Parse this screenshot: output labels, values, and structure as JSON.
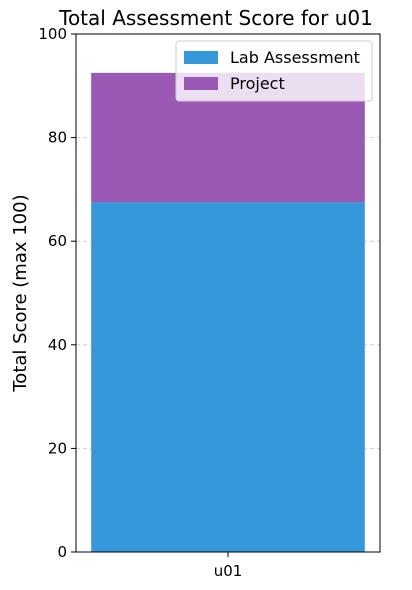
{
  "chart_data": {
    "type": "bar",
    "stacked": true,
    "title": "Total Assessment Score for u01",
    "xlabel": "",
    "ylabel": "Total Score (max 100)",
    "categories": [
      "u01"
    ],
    "ylim": [
      0,
      100
    ],
    "yticks": [
      0,
      20,
      40,
      60,
      80,
      100
    ],
    "grid": "y-dashed",
    "legend_position": "top-right",
    "series": [
      {
        "name": "Lab Assessment",
        "values": [
          67.5
        ],
        "color": "#3498db"
      },
      {
        "name": "Project",
        "values": [
          25
        ],
        "color": "#9b59b6"
      }
    ]
  }
}
